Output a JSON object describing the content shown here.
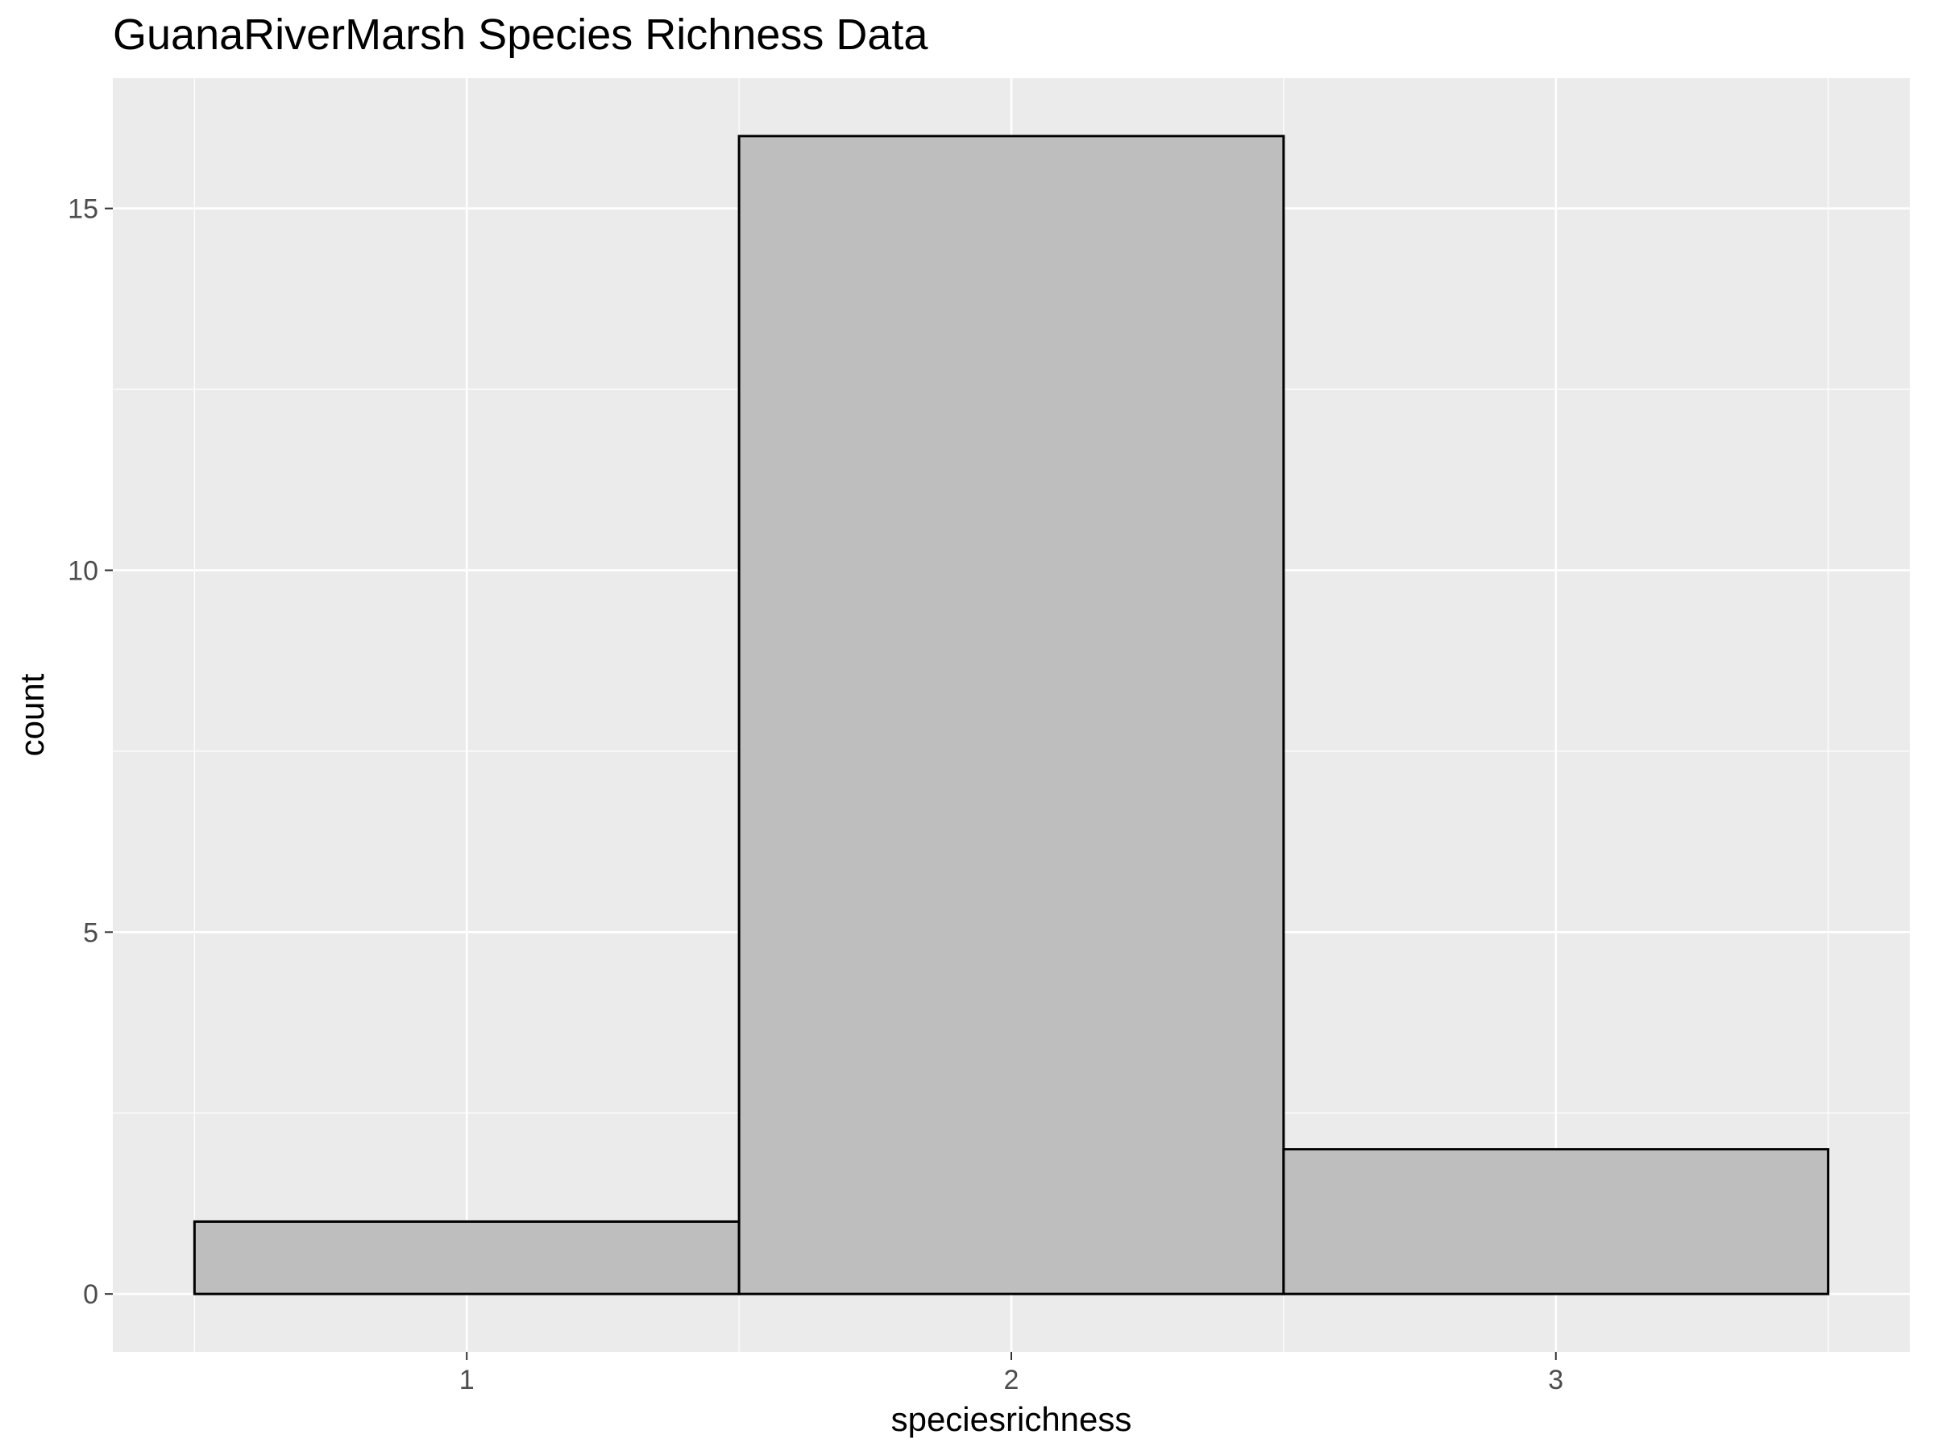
{
  "chart_data": {
    "type": "bar",
    "title": "GuanaRiverMarsh Species Richness Data",
    "xlabel": "speciesrichness",
    "ylabel": "count",
    "categories": [
      "1",
      "2",
      "3"
    ],
    "x": [
      1,
      2,
      3
    ],
    "values": [
      1,
      16,
      2
    ],
    "bin_width": 1,
    "xlim": [
      0.35,
      3.65
    ],
    "ylim": [
      -0.8,
      16.8
    ],
    "x_ticks": [
      1,
      2,
      3
    ],
    "y_ticks": [
      0,
      5,
      10,
      15
    ],
    "grid": true,
    "colors": {
      "panel_background": "#ebebeb",
      "grid_major": "#ffffff",
      "bar_fill": "#bebebe",
      "bar_outline": "#000000",
      "tick_text": "#4d4d4d",
      "tick_mark": "#333333"
    }
  }
}
